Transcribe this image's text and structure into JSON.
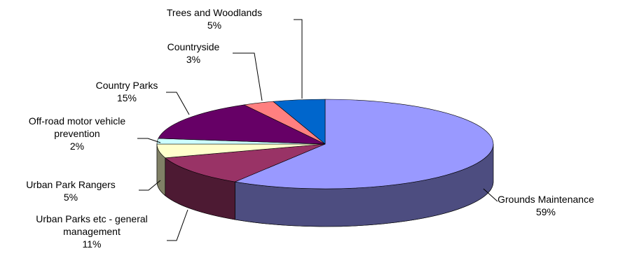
{
  "chart_data": {
    "type": "pie",
    "title": "",
    "three_d": true,
    "legend": "none",
    "slices": [
      {
        "label": "Grounds Maintenance",
        "pct_label": "59%",
        "value": 59,
        "color": "#9999ff",
        "side_color": "#4d4d80"
      },
      {
        "label": "Urban Parks etc - general management",
        "pct_label": "11%",
        "value": 11,
        "color": "#993366",
        "side_color": "#4d1a33"
      },
      {
        "label": "Urban Park Rangers",
        "pct_label": "5%",
        "value": 5,
        "color": "#ffffcc",
        "side_color": "#808066"
      },
      {
        "label": "Off-road motor vehicle prevention",
        "pct_label": "2%",
        "value": 2,
        "color": "#ccffff",
        "side_color": "#668080"
      },
      {
        "label": "Country Parks",
        "pct_label": "15%",
        "value": 15,
        "color": "#660066",
        "side_color": "#330033"
      },
      {
        "label": "Countryside",
        "pct_label": "3%",
        "value": 3,
        "color": "#ff8080",
        "side_color": "#804040"
      },
      {
        "label": "Trees and Woodlands",
        "pct_label": "5%",
        "value": 5,
        "color": "#0066cc",
        "side_color": "#003366"
      }
    ]
  }
}
